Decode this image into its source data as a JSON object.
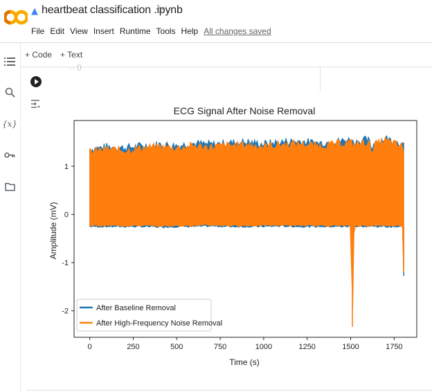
{
  "header": {
    "title": "heartbeat classification .ipynb",
    "star_icon": "star-icon",
    "menu": [
      "File",
      "Edit",
      "View",
      "Insert",
      "Runtime",
      "Tools",
      "Help"
    ],
    "saved_status": "All changes saved"
  },
  "toolbar": {
    "code_label": "+ Code",
    "text_label": "+ Text"
  },
  "sidebar": {
    "icons": [
      "table-of-contents-icon",
      "search-icon",
      "variables-icon",
      "secrets-key-icon",
      "files-folder-icon"
    ],
    "variables_glyph": "{x}"
  },
  "cell": {
    "code_fragment": "...   ()",
    "output_icon": "output-toggle-icon"
  },
  "colors": {
    "baseline": "#1f77b4",
    "highfreq": "#ff7f0e",
    "accent": "#f9ab00",
    "logo_orange": "#f9ab00"
  },
  "chart_data": {
    "type": "line",
    "title": "ECG Signal After Noise Removal",
    "xlabel": "Time (s)",
    "ylabel": "Amplitude (mV)",
    "xlim": [
      -90,
      1880
    ],
    "ylim": [
      -2.55,
      1.95
    ],
    "xticks": [
      0,
      250,
      500,
      750,
      1000,
      1250,
      1500,
      1750
    ],
    "yticks": [
      -2,
      -1,
      0,
      1
    ],
    "grid": false,
    "legend_position": "lower-left",
    "series": [
      {
        "name": "After Baseline Removal",
        "color": "#1f77b4",
        "x": [
          0,
          100,
          200,
          300,
          400,
          500,
          600,
          700,
          800,
          900,
          1000,
          1100,
          1200,
          1300,
          1400,
          1500,
          1510,
          1520,
          1600,
          1620,
          1640,
          1700,
          1800,
          1805
        ],
        "upper": [
          1.35,
          1.4,
          1.38,
          1.42,
          1.45,
          1.43,
          1.47,
          1.45,
          1.48,
          1.5,
          1.46,
          1.5,
          1.52,
          1.48,
          1.5,
          1.55,
          1.5,
          1.5,
          1.55,
          1.38,
          1.5,
          1.58,
          1.45,
          1.4
        ],
        "lower": [
          -0.25,
          -0.25,
          -0.25,
          -0.25,
          -0.26,
          -0.25,
          -0.25,
          -0.24,
          -0.25,
          -0.25,
          -0.25,
          -0.24,
          -0.25,
          -0.25,
          -0.25,
          -0.25,
          -0.25,
          -0.25,
          -0.25,
          -0.25,
          -0.25,
          -0.25,
          -0.25,
          -1.27
        ]
      },
      {
        "name": "After High-Frequency Noise Removal",
        "color": "#ff7f0e",
        "x": [
          0,
          100,
          200,
          300,
          400,
          500,
          600,
          700,
          800,
          900,
          1000,
          1100,
          1200,
          1300,
          1400,
          1500,
          1510,
          1520,
          1600,
          1620,
          1640,
          1700,
          1800,
          1805
        ],
        "upper": [
          1.3,
          1.35,
          1.33,
          1.38,
          1.4,
          1.38,
          1.42,
          1.4,
          1.43,
          1.45,
          1.41,
          1.45,
          1.47,
          1.43,
          1.45,
          1.5,
          1.45,
          1.45,
          1.5,
          1.33,
          1.45,
          1.53,
          1.4,
          1.35
        ],
        "lower": [
          -0.23,
          -0.23,
          -0.23,
          -0.23,
          -0.24,
          -0.23,
          -0.23,
          -0.22,
          -0.23,
          -0.23,
          -0.23,
          -0.22,
          -0.23,
          -0.23,
          -0.23,
          -0.23,
          -2.33,
          -0.23,
          -0.23,
          -0.23,
          -0.23,
          -0.23,
          -0.23,
          -1.2
        ]
      }
    ]
  }
}
